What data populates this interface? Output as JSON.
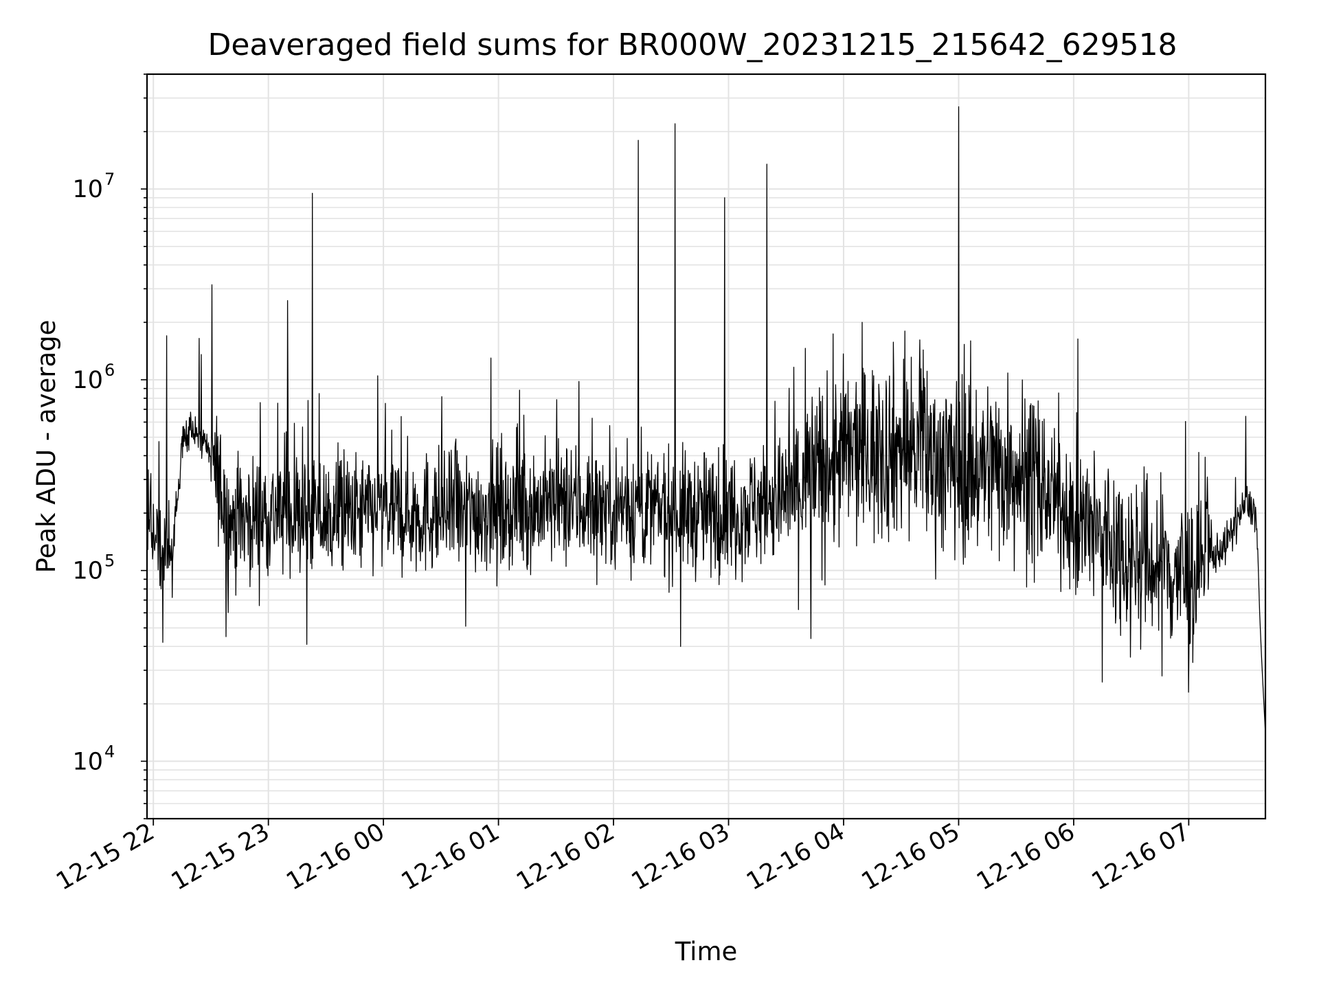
{
  "chart_data": {
    "type": "line",
    "title": "Deaveraged field sums for BR000W_20231215_215642_629518",
    "xlabel": "Time",
    "ylabel": "Peak ADU - average",
    "yscale": "log",
    "ylim": [
      5000,
      40000000
    ],
    "xlim": [
      "2023-12-15 21:56:42",
      "2023-12-16 07:40:00"
    ],
    "grid": true,
    "line_color": "#000000",
    "x_ticks": [
      "12-15 22",
      "12-15 23",
      "12-16 00",
      "12-16 01",
      "12-16 02",
      "12-16 03",
      "12-16 04",
      "12-16 05",
      "12-16 06",
      "12-16 07"
    ],
    "y_ticks": [
      {
        "value": 10000,
        "base": "10",
        "exp": "4"
      },
      {
        "value": 100000,
        "base": "10",
        "exp": "5"
      },
      {
        "value": 1000000,
        "base": "10",
        "exp": "6"
      },
      {
        "value": 10000000,
        "base": "10",
        "exp": "7"
      }
    ],
    "series": [
      {
        "x": [
          "2023-12-15 21:57",
          "2023-12-15 22:05",
          "2023-12-15 22:10",
          "2023-12-15 22:15",
          "2023-12-15 22:20",
          "2023-12-15 22:25",
          "2023-12-15 22:30",
          "2023-12-15 22:40",
          "2023-12-15 23:00",
          "2023-12-15 23:30",
          "2023-12-16 00:00",
          "2023-12-16 00:30",
          "2023-12-16 01:00",
          "2023-12-16 01:30",
          "2023-12-16 02:00",
          "2023-12-16 02:30",
          "2023-12-16 03:00",
          "2023-12-16 03:30",
          "2023-12-16 04:00",
          "2023-12-16 04:30",
          "2023-12-16 05:00",
          "2023-12-16 05:30",
          "2023-12-16 06:00",
          "2023-12-16 06:30",
          "2023-12-16 07:00",
          "2023-12-16 07:20",
          "2023-12-16 07:30",
          "2023-12-16 07:35",
          "2023-12-16 07:38",
          "2023-12-16 07:40"
        ],
        "y": [
          180000,
          150000,
          120000,
          450000,
          550000,
          500000,
          400000,
          180000,
          200000,
          190000,
          200000,
          200000,
          210000,
          220000,
          220000,
          200000,
          200000,
          240000,
          400000,
          450000,
          350000,
          350000,
          180000,
          120000,
          90000,
          140000,
          230000,
          200000,
          40000,
          12000
        ]
      }
    ],
    "spikes": [
      {
        "x": "2023-12-15 22:07",
        "y": 1700000
      },
      {
        "x": "2023-12-15 23:10",
        "y": 2600000
      },
      {
        "x": "2023-12-15 23:23",
        "y": 9500000
      },
      {
        "x": "2023-12-15 23:57",
        "y": 1050000
      },
      {
        "x": "2023-12-16 00:56",
        "y": 1300000
      },
      {
        "x": "2023-12-16 01:42",
        "y": 980000
      },
      {
        "x": "2023-12-16 02:13",
        "y": 18000000
      },
      {
        "x": "2023-12-16 02:32",
        "y": 22000000
      },
      {
        "x": "2023-12-16 02:58",
        "y": 9000000
      },
      {
        "x": "2023-12-16 03:20",
        "y": 13500000
      },
      {
        "x": "2023-12-16 05:00",
        "y": 27000000
      }
    ],
    "dips": [
      {
        "x": "2023-12-15 22:05",
        "y": 42000
      },
      {
        "x": "2023-12-15 22:38",
        "y": 45000
      },
      {
        "x": "2023-12-15 23:20",
        "y": 41000
      },
      {
        "x": "2023-12-16 00:43",
        "y": 51000
      },
      {
        "x": "2023-12-16 02:35",
        "y": 40000
      },
      {
        "x": "2023-12-16 03:43",
        "y": 44000
      },
      {
        "x": "2023-12-16 06:15",
        "y": 26000
      },
      {
        "x": "2023-12-16 06:46",
        "y": 28000
      },
      {
        "x": "2023-12-16 07:00",
        "y": 23000
      }
    ]
  }
}
